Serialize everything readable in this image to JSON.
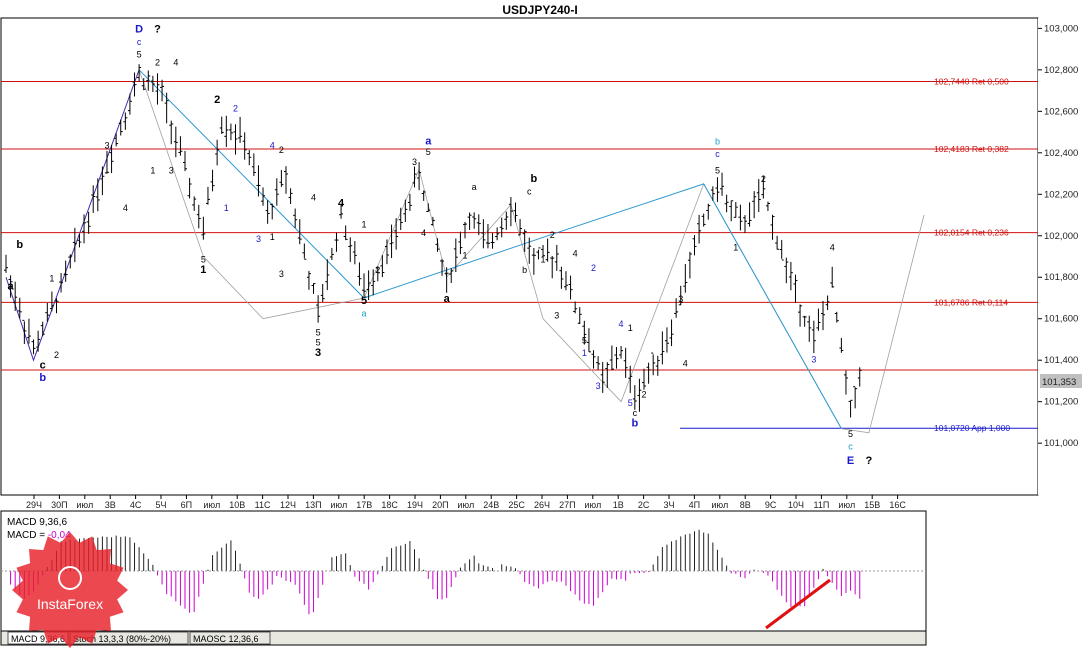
{
  "chart_data": {
    "type": "candlestick",
    "title": "USDJPY240-I",
    "ylim": [
      100.75,
      103.05
    ],
    "y_ticks": [
      101.0,
      101.2,
      101.4,
      101.6,
      101.8,
      102.0,
      102.2,
      102.4,
      102.6,
      102.8,
      103.0
    ],
    "y_tick_labels": [
      "101,000",
      "101,200",
      "101,400",
      "101,600",
      "101,800",
      "102,000",
      "102,200",
      "102,400",
      "102,600",
      "102,800",
      "103,000"
    ],
    "x_tick_labels": [
      "29Ч",
      "30П",
      "июл",
      "3В",
      "4С",
      "5Ч",
      "6П",
      "июл",
      "10В",
      "11С",
      "12Ч",
      "13П",
      "июл",
      "17В",
      "18С",
      "19Ч",
      "20П",
      "июл",
      "24В",
      "25С",
      "26Ч",
      "27П",
      "июл",
      "1В",
      "2С",
      "3Ч",
      "4П",
      "июл",
      "8В",
      "9С",
      "10Ч",
      "11П",
      "июл",
      "15В",
      "16С"
    ],
    "bars_count": 200,
    "current_price": {
      "value": 101.353,
      "label": "101,353"
    },
    "levels": [
      {
        "value": 102.744,
        "label": "102,7440 Ret 0,500",
        "color": "#d01010"
      },
      {
        "value": 102.4183,
        "label": "102,4183 Ret 0,382",
        "color": "#d01010"
      },
      {
        "value": 102.0154,
        "label": "102,0154 Ret 0,236",
        "color": "#d01010"
      },
      {
        "value": 101.6786,
        "label": "101,6786 Ret 0,114",
        "color": "#d01010"
      },
      {
        "value": 101.353,
        "label": "",
        "color": "#d01010"
      },
      {
        "value": 101.072,
        "label": "101,0720 App 1,000",
        "color": "#1a1acc"
      }
    ],
    "wave_path_purple": [
      [
        0,
        101.8
      ],
      [
        6,
        101.4
      ],
      [
        29,
        102.8
      ]
    ],
    "wave_path_blue": [
      [
        29,
        102.8
      ],
      [
        78,
        101.7
      ],
      [
        118,
        102.0
      ],
      [
        152,
        102.25
      ],
      [
        182,
        101.07
      ]
    ],
    "wave_path_gray": [
      [
        29,
        102.8
      ],
      [
        43,
        101.9
      ],
      [
        56,
        101.6
      ],
      [
        78,
        101.7
      ],
      [
        90,
        102.32
      ],
      [
        96,
        101.8
      ],
      [
        110,
        102.15
      ],
      [
        117,
        101.6
      ],
      [
        134,
        101.2
      ],
      [
        152,
        102.25
      ],
      [
        182,
        101.07
      ],
      [
        188,
        101.05
      ],
      [
        200,
        102.1
      ]
    ],
    "wave_labels": [
      {
        "text": "D",
        "bar": 29,
        "y": 102.98,
        "color": "#1a1acc",
        "bold": true
      },
      {
        "text": "?",
        "bar": 33,
        "y": 102.98,
        "color": "#000000",
        "bold": true
      },
      {
        "text": "c",
        "bar": 29,
        "y": 102.92,
        "color": "#1a1acc",
        "bold": false
      },
      {
        "text": "5",
        "bar": 29,
        "y": 102.86,
        "color": "#000000",
        "bold": false
      },
      {
        "text": "2",
        "bar": 33,
        "y": 102.82,
        "color": "#000000",
        "bold": false
      },
      {
        "text": "4",
        "bar": 37,
        "y": 102.82,
        "color": "#000000",
        "bold": false
      },
      {
        "text": "3",
        "bar": 22,
        "y": 102.42,
        "color": "#000000",
        "bold": false
      },
      {
        "text": "2",
        "bar": 46,
        "y": 102.64,
        "color": "#000000",
        "bold": true
      },
      {
        "text": "2",
        "bar": 50,
        "y": 102.6,
        "color": "#1a1acc",
        "bold": false
      },
      {
        "text": "1",
        "bar": 48,
        "y": 102.12,
        "color": "#1a1acc",
        "bold": false
      },
      {
        "text": "4",
        "bar": 58,
        "y": 102.42,
        "color": "#1a1acc",
        "bold": false
      },
      {
        "text": "2",
        "bar": 60,
        "y": 102.4,
        "color": "#000000",
        "bold": false
      },
      {
        "text": "3",
        "bar": 55,
        "y": 101.97,
        "color": "#1a1acc",
        "bold": false
      },
      {
        "text": "1",
        "bar": 58,
        "y": 101.98,
        "color": "#000000",
        "bold": false
      },
      {
        "text": "5",
        "bar": 43,
        "y": 101.87,
        "color": "#000000",
        "bold": false
      },
      {
        "text": "1",
        "bar": 43,
        "y": 101.82,
        "color": "#000000",
        "bold": true
      },
      {
        "text": "b",
        "bar": 3,
        "y": 101.94,
        "color": "#000000",
        "bold": true
      },
      {
        "text": "a",
        "bar": 1,
        "y": 101.74,
        "color": "#000000",
        "bold": true
      },
      {
        "text": "1",
        "bar": 10,
        "y": 101.78,
        "color": "#000000",
        "bold": false
      },
      {
        "text": "c",
        "bar": 8,
        "y": 101.36,
        "color": "#000000",
        "bold": true
      },
      {
        "text": "b",
        "bar": 8,
        "y": 101.3,
        "color": "#1a1acc",
        "bold": true
      },
      {
        "text": "2",
        "bar": 11,
        "y": 101.41,
        "color": "#000000",
        "bold": false
      },
      {
        "text": "4",
        "bar": 26,
        "y": 102.12,
        "color": "#000000",
        "bold": false
      },
      {
        "text": "1",
        "bar": 32,
        "y": 102.3,
        "color": "#000000",
        "bold": false
      },
      {
        "text": "3",
        "bar": 36,
        "y": 102.3,
        "color": "#000000",
        "bold": false
      },
      {
        "text": "3",
        "bar": 60,
        "y": 101.8,
        "color": "#000000",
        "bold": false
      },
      {
        "text": "4",
        "bar": 67,
        "y": 102.17,
        "color": "#000000",
        "bold": false
      },
      {
        "text": "4",
        "bar": 73,
        "y": 102.14,
        "color": "#000000",
        "bold": true
      },
      {
        "text": "1",
        "bar": 78,
        "y": 102.04,
        "color": "#000000",
        "bold": false
      },
      {
        "text": "2",
        "bar": 81,
        "y": 101.82,
        "color": "#000000",
        "bold": false
      },
      {
        "text": "5",
        "bar": 68,
        "y": 101.52,
        "color": "#000000",
        "bold": false
      },
      {
        "text": "5",
        "bar": 68,
        "y": 101.47,
        "color": "#000000",
        "bold": false
      },
      {
        "text": "3",
        "bar": 68,
        "y": 101.42,
        "color": "#000000",
        "bold": true
      },
      {
        "text": "5",
        "bar": 78,
        "y": 101.67,
        "color": "#000000",
        "bold": true
      },
      {
        "text": "a",
        "bar": 78,
        "y": 101.61,
        "color": "#1a9cc8",
        "bold": false
      },
      {
        "text": "3",
        "bar": 89,
        "y": 102.34,
        "color": "#000000",
        "bold": false
      },
      {
        "text": "a",
        "bar": 92,
        "y": 102.44,
        "color": "#1a1acc",
        "bold": true
      },
      {
        "text": "5",
        "bar": 92,
        "y": 102.39,
        "color": "#000000",
        "bold": false
      },
      {
        "text": "4",
        "bar": 91,
        "y": 102.0,
        "color": "#000000",
        "bold": false
      },
      {
        "text": "a",
        "bar": 102,
        "y": 102.22,
        "color": "#000000",
        "bold": false
      },
      {
        "text": "1",
        "bar": 100,
        "y": 101.89,
        "color": "#000000",
        "bold": false
      },
      {
        "text": "a",
        "bar": 96,
        "y": 101.68,
        "color": "#000000",
        "bold": true
      },
      {
        "text": "b",
        "bar": 115,
        "y": 102.26,
        "color": "#000000",
        "bold": true
      },
      {
        "text": "c",
        "bar": 114,
        "y": 102.2,
        "color": "#000000",
        "bold": false
      },
      {
        "text": "2",
        "bar": 119,
        "y": 101.99,
        "color": "#000000",
        "bold": false
      },
      {
        "text": "1",
        "bar": 117,
        "y": 101.87,
        "color": "#000000",
        "bold": false
      },
      {
        "text": "b",
        "bar": 113,
        "y": 101.82,
        "color": "#000000",
        "bold": false
      },
      {
        "text": "4",
        "bar": 124,
        "y": 101.9,
        "color": "#000000",
        "bold": false
      },
      {
        "text": "2",
        "bar": 128,
        "y": 101.83,
        "color": "#1a1acc",
        "bold": false
      },
      {
        "text": "3",
        "bar": 120,
        "y": 101.6,
        "color": "#000000",
        "bold": false
      },
      {
        "text": "5",
        "bar": 126,
        "y": 101.48,
        "color": "#000000",
        "bold": false
      },
      {
        "text": "1",
        "bar": 126,
        "y": 101.42,
        "color": "#1a1acc",
        "bold": false
      },
      {
        "text": "3",
        "bar": 129,
        "y": 101.26,
        "color": "#1a1acc",
        "bold": false
      },
      {
        "text": "4",
        "bar": 134,
        "y": 101.56,
        "color": "#1a1acc",
        "bold": false
      },
      {
        "text": "1",
        "bar": 136,
        "y": 101.54,
        "color": "#000000",
        "bold": false
      },
      {
        "text": "5",
        "bar": 136,
        "y": 101.18,
        "color": "#1a1acc",
        "bold": false
      },
      {
        "text": "c",
        "bar": 137,
        "y": 101.13,
        "color": "#000000",
        "bold": false
      },
      {
        "text": "b",
        "bar": 137,
        "y": 101.08,
        "color": "#1a1acc",
        "bold": true
      },
      {
        "text": "2",
        "bar": 139,
        "y": 101.22,
        "color": "#000000",
        "bold": false
      },
      {
        "text": "3",
        "bar": 147,
        "y": 101.68,
        "color": "#000000",
        "bold": false
      },
      {
        "text": "4",
        "bar": 148,
        "y": 101.37,
        "color": "#000000",
        "bold": false
      },
      {
        "text": "b",
        "bar": 155,
        "y": 102.44,
        "color": "#1a9cc8",
        "bold": false
      },
      {
        "text": "c",
        "bar": 155,
        "y": 102.38,
        "color": "#1a1acc",
        "bold": false
      },
      {
        "text": "5",
        "bar": 155,
        "y": 102.3,
        "color": "#000000",
        "bold": false
      },
      {
        "text": "1",
        "bar": 159,
        "y": 101.93,
        "color": "#000000",
        "bold": false
      },
      {
        "text": "2",
        "bar": 165,
        "y": 102.26,
        "color": "#000000",
        "bold": false
      },
      {
        "text": "4",
        "bar": 180,
        "y": 101.93,
        "color": "#000000",
        "bold": false
      },
      {
        "text": "3",
        "bar": 176,
        "y": 101.39,
        "color": "#1a1acc",
        "bold": false
      },
      {
        "text": "5",
        "bar": 184,
        "y": 101.03,
        "color": "#000000",
        "bold": false
      },
      {
        "text": "c",
        "bar": 184,
        "y": 100.97,
        "color": "#1a9cc8",
        "bold": false
      },
      {
        "text": "E",
        "bar": 184,
        "y": 100.9,
        "color": "#1a1acc",
        "bold": true
      },
      {
        "text": "?",
        "bar": 188,
        "y": 100.9,
        "color": "#000000",
        "bold": true
      }
    ]
  },
  "macd": {
    "label_line1": "MACD 9,36,6",
    "label_line2_prefix": "MACD = ",
    "label_line2_value": "-0,04",
    "value_color": "#cc00cc"
  },
  "tabs": [
    "MACD 9,36,6",
    "Stoch 13,3,3 (80%-20%)",
    "MAOSC 12,36,6"
  ],
  "logo": {
    "text": "InstaForex"
  }
}
